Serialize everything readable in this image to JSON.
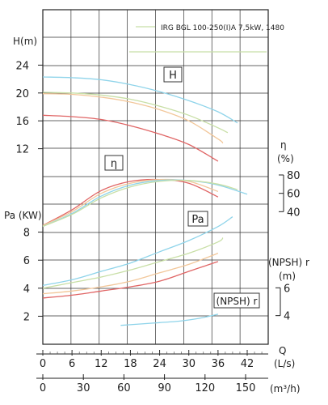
{
  "chart_data": {
    "type": "line",
    "legend_label": "IRG BGL 100-250(I)A 7,5kW, 1480",
    "x_label": "Q",
    "x_units": [
      "(L/s)",
      "(m³/h)"
    ],
    "x_ticks_ls": [
      0,
      6,
      12,
      18,
      24,
      30,
      36,
      42
    ],
    "x_ticks_m3h": [
      0,
      30,
      60,
      90,
      120,
      150
    ],
    "xlim_ls": [
      0,
      46
    ],
    "head": {
      "axis_label": "H(m)",
      "ticks": [
        24,
        20,
        16,
        12
      ],
      "ylim": [
        8,
        28
      ],
      "box_label": "H",
      "series": [
        {
          "color": "#8fd4ea",
          "x": [
            0,
            6,
            12,
            18,
            24,
            30,
            36,
            40
          ],
          "y": [
            22.3,
            22.2,
            21.9,
            21.2,
            20.2,
            18.9,
            17.3,
            15.7
          ]
        },
        {
          "color": "#c8dfa6",
          "x": [
            0,
            6,
            12,
            18,
            24,
            30,
            36,
            38
          ],
          "y": [
            20.1,
            20.0,
            19.7,
            19.1,
            18.1,
            16.8,
            15.0,
            14.3
          ]
        },
        {
          "color": "#f2c79a",
          "x": [
            0,
            6,
            12,
            18,
            24,
            30,
            36,
            37
          ],
          "y": [
            19.9,
            19.8,
            19.4,
            18.7,
            17.6,
            16.0,
            13.4,
            12.8
          ]
        },
        {
          "color": "#e06565",
          "x": [
            0,
            6,
            12,
            18,
            24,
            30,
            36
          ],
          "y": [
            16.8,
            16.6,
            16.2,
            15.3,
            14.1,
            12.6,
            10.2
          ]
        }
      ]
    },
    "efficiency": {
      "axis_label": "η",
      "axis_unit": "(%)",
      "ticks": [
        80,
        60,
        40
      ],
      "ylim": [
        20,
        80
      ],
      "box_label": "η",
      "series": [
        {
          "color": "#e06565",
          "x": [
            0,
            6,
            12,
            18,
            24,
            30,
            36
          ],
          "y": [
            25,
            42,
            63,
            73,
            75,
            71,
            56
          ]
        },
        {
          "color": "#f2c79a",
          "x": [
            0,
            6,
            12,
            18,
            24,
            30,
            36
          ],
          "y": [
            25,
            40,
            60,
            71,
            75,
            73,
            62
          ]
        },
        {
          "color": "#8fd4ea",
          "x": [
            0,
            6,
            12,
            18,
            24,
            30,
            36,
            42
          ],
          "y": [
            24,
            38,
            57,
            69,
            74,
            74,
            69,
            59
          ]
        },
        {
          "color": "#c8dfa6",
          "x": [
            0,
            6,
            12,
            18,
            24,
            30,
            36,
            40
          ],
          "y": [
            24,
            37,
            55,
            67,
            73,
            74,
            70,
            64
          ]
        }
      ]
    },
    "power": {
      "axis_label": "Pa (KW)",
      "ticks": [
        8,
        6,
        4,
        2
      ],
      "ylim": [
        0,
        10
      ],
      "box_label": "Pa",
      "series": [
        {
          "color": "#8fd4ea",
          "x": [
            0,
            6,
            12,
            18,
            24,
            30,
            36,
            39
          ],
          "y": [
            4.2,
            4.6,
            5.2,
            5.8,
            6.6,
            7.4,
            8.4,
            9.1
          ]
        },
        {
          "color": "#c8dfa6",
          "x": [
            0,
            6,
            12,
            18,
            24,
            30,
            36,
            37
          ],
          "y": [
            4.0,
            4.4,
            4.8,
            5.3,
            5.9,
            6.5,
            7.3,
            7.6
          ]
        },
        {
          "color": "#f2c79a",
          "x": [
            0,
            6,
            12,
            18,
            24,
            30,
            36
          ],
          "y": [
            3.6,
            3.8,
            4.1,
            4.5,
            5.1,
            5.7,
            6.5
          ]
        },
        {
          "color": "#e06565",
          "x": [
            0,
            6,
            12,
            18,
            24,
            30,
            36
          ],
          "y": [
            3.3,
            3.5,
            3.8,
            4.1,
            4.5,
            5.2,
            5.9
          ]
        }
      ]
    },
    "npsh": {
      "axis_label": "(NPSH) r",
      "axis_unit": "(m)",
      "ticks": [
        6,
        4
      ],
      "ylim": [
        2,
        8
      ],
      "box_label": "(NPSH) r",
      "series": [
        {
          "color": "#8fd4ea",
          "x": [
            16,
            20,
            24,
            28,
            32,
            36
          ],
          "y": [
            3.3,
            3.4,
            3.5,
            3.6,
            3.8,
            4.1
          ]
        }
      ]
    }
  }
}
